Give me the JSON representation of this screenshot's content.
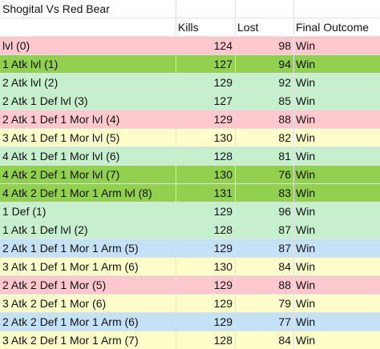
{
  "title": "Shogital Vs Red Bear",
  "headers": {
    "kills": "Kills",
    "lost": "Lost",
    "outcome": "Final Outcome"
  },
  "row_colors": {
    "red": "#ffc7ce",
    "dark_green": "#92d050",
    "light_green": "#c6efce",
    "yellow": "#ffffcc",
    "blue": "#c5e1f5"
  },
  "rows": [
    {
      "label": "lvl (0)",
      "kills": "124",
      "lost": "98",
      "outcome": "Win",
      "color": "#ffc7ce"
    },
    {
      "label": "1 Atk lvl (1)",
      "kills": "127",
      "lost": "94",
      "outcome": "Win",
      "color": "#92d050"
    },
    {
      "label": "2 Atk lvl (2)",
      "kills": "129",
      "lost": "92",
      "outcome": "Win",
      "color": "#c6efce"
    },
    {
      "label": "2 Atk 1 Def lvl (3)",
      "kills": "127",
      "lost": "85",
      "outcome": "Win",
      "color": "#c6efce"
    },
    {
      "label": "2 Atk 1 Def 1 Mor lvl (4)",
      "kills": "129",
      "lost": "88",
      "outcome": "Win",
      "color": "#ffc7ce"
    },
    {
      "label": "3 Atk 1 Def 1 Mor lvl (5)",
      "kills": "130",
      "lost": "82",
      "outcome": "Win",
      "color": "#ffffcc"
    },
    {
      "label": "4 Atk 1 Def 1 Mor lvl (6)",
      "kills": "128",
      "lost": "81",
      "outcome": "Win",
      "color": "#c6efce"
    },
    {
      "label": "4 Atk 2 Def 1 Mor lvl (7)",
      "kills": "130",
      "lost": "76",
      "outcome": "Win",
      "color": "#92d050"
    },
    {
      "label": "4 Atk 2 Def 1 Mor 1 Arm lvl (8)",
      "kills": "131",
      "lost": "83",
      "outcome": "Win",
      "color": "#92d050"
    },
    {
      "label": "1 Def (1)",
      "kills": "129",
      "lost": "96",
      "outcome": "Win",
      "color": "#c6efce"
    },
    {
      "label": "1 Atk 1 Def lvl (2)",
      "kills": "128",
      "lost": "87",
      "outcome": "Win",
      "color": "#c6efce"
    },
    {
      "label": "2 Atk 1 Def 1 Mor 1 Arm (5)",
      "kills": "129",
      "lost": "87",
      "outcome": "Win",
      "color": "#c5e1f5"
    },
    {
      "label": "3 Atk 1 Def 1 Mor 1 Arm (6)",
      "kills": "130",
      "lost": "84",
      "outcome": "Win",
      "color": "#ffffcc"
    },
    {
      "label": "2 Atk 2 Def 1 Mor (5)",
      "kills": "129",
      "lost": "88",
      "outcome": "Win",
      "color": "#ffc7ce"
    },
    {
      "label": "3 Atk 2 Def 1 Mor (6)",
      "kills": "129",
      "lost": "79",
      "outcome": "Win",
      "color": "#ffffcc"
    },
    {
      "label": "2 Atk 2 Def 1 Mor 1 Arm (6)",
      "kills": "129",
      "lost": "77",
      "outcome": "Win",
      "color": "#c5e1f5"
    },
    {
      "label": "3 Atk 2 Def 1 Mor 1 Arm (7)",
      "kills": "128",
      "lost": "84",
      "outcome": "Win",
      "color": "#ffffcc"
    }
  ]
}
